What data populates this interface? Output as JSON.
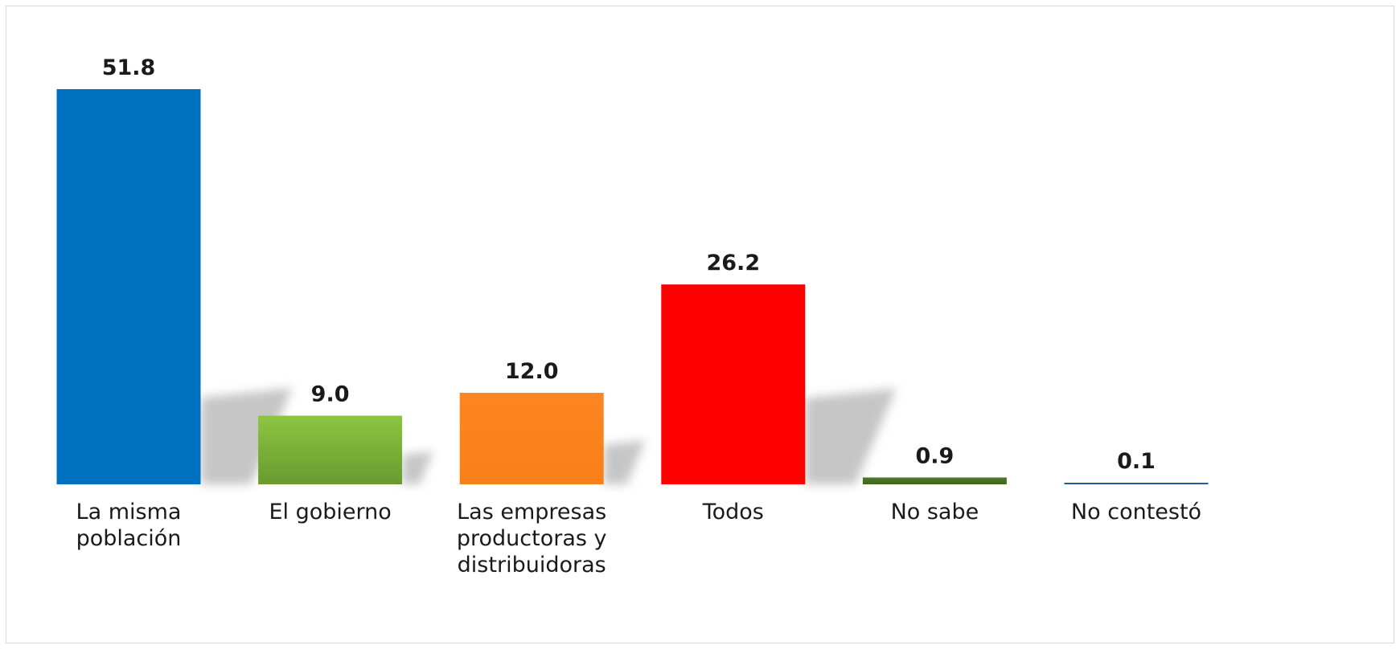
{
  "chart_data": {
    "type": "bar",
    "categories": [
      [
        "La misma",
        "población"
      ],
      [
        "El gobierno"
      ],
      [
        "Las empresas",
        "productoras y",
        "distribuidoras"
      ],
      [
        "Todos"
      ],
      [
        "No sabe"
      ],
      [
        "No contestó"
      ]
    ],
    "values": [
      51.8,
      9.0,
      12.0,
      26.2,
      0.9,
      0.1
    ],
    "value_labels": [
      "51.8",
      "9.0",
      "12.0",
      "26.2",
      "0.9",
      "0.1"
    ],
    "colors": [
      [
        "#0070c0",
        "#0070c0"
      ],
      [
        "#8cc63f",
        "#6a9a30"
      ],
      [
        "#fd8520",
        "#fa7f18"
      ],
      [
        "#ff0000",
        "#ff0000"
      ],
      [
        "#4f7a28",
        "#3f6520"
      ],
      [
        "#1f5c99",
        "#1f5c99"
      ]
    ],
    "title": "",
    "xlabel": "",
    "ylabel": "",
    "ylim": [
      0,
      51.8
    ],
    "grid": false,
    "legend": "none"
  }
}
